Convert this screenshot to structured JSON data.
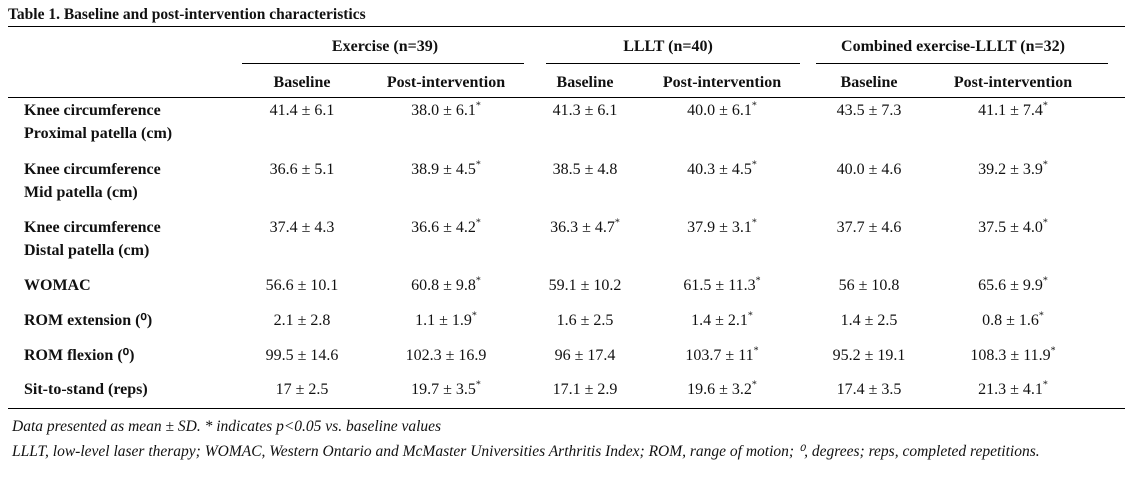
{
  "title": "Table 1. Baseline and post-intervention characteristics",
  "groups": [
    "Exercise (n=39)",
    "LLLT (n=40)",
    "Combined exercise-LLLT (n=32)"
  ],
  "subheaders": [
    "Baseline",
    "Post-intervention",
    "Baseline",
    "Post-intervention",
    "Baseline",
    "Post-intervention"
  ],
  "rows": [
    {
      "label": [
        "Knee circumference",
        "Proximal patella (cm)"
      ],
      "cells": [
        {
          "value": "41.4 ± 6.1"
        },
        {
          "value": "38.0 ± 6.1",
          "sup": "*"
        },
        {
          "value": "41.3 ± 6.1"
        },
        {
          "value": "40.0 ± 6.1",
          "sup": "*"
        },
        {
          "value": "43.5 ± 7.3"
        },
        {
          "value": "41.1 ± 7.4",
          "sup": "*"
        }
      ]
    },
    {
      "label": [
        "Knee circumference",
        "Mid patella (cm)"
      ],
      "cells": [
        {
          "value": "36.6 ± 5.1"
        },
        {
          "value": "38.9 ± 4.5",
          "sup": "*"
        },
        {
          "value": "38.5 ± 4.8"
        },
        {
          "value": "40.3 ± 4.5",
          "sup": "*"
        },
        {
          "value": "40.0 ± 4.6"
        },
        {
          "value": "39.2 ± 3.9",
          "sup": "*"
        }
      ]
    },
    {
      "label": [
        "Knee circumference",
        "Distal patella (cm)"
      ],
      "cells": [
        {
          "value": "37.4 ± 4.3"
        },
        {
          "value": "36.6 ± 4.2",
          "sup": "*"
        },
        {
          "value": "36.3 ± 4.7",
          "sup": "*"
        },
        {
          "value": "37.9 ± 3.1",
          "sup": "*"
        },
        {
          "value": "37.7 ± 4.6"
        },
        {
          "value": "37.5 ± 4.0",
          "sup": "*"
        }
      ]
    },
    {
      "label": [
        "WOMAC"
      ],
      "cells": [
        {
          "value": "56.6 ± 10.1"
        },
        {
          "value": "60.8 ± 9.8",
          "sup": "*"
        },
        {
          "value": "59.1 ± 10.2"
        },
        {
          "value": "61.5 ± 11.3",
          "sup": "*"
        },
        {
          "value": "56 ± 10.8"
        },
        {
          "value": "65.6 ± 9.9",
          "sup": "*"
        }
      ]
    },
    {
      "label": [
        "ROM extension (⁰)"
      ],
      "cells": [
        {
          "value": "2.1 ± 2.8"
        },
        {
          "value": "1.1 ± 1.9",
          "sup": "*"
        },
        {
          "value": "1.6 ± 2.5"
        },
        {
          "value": "1.4 ± 2.1",
          "sup": "*"
        },
        {
          "value": "1.4 ± 2.5"
        },
        {
          "value": "0.8 ± 1.6",
          "sup": "*"
        }
      ]
    },
    {
      "label": [
        "ROM flexion (⁰)"
      ],
      "cells": [
        {
          "value": "99.5 ± 14.6"
        },
        {
          "value": "102.3 ± 16.9"
        },
        {
          "value": "96 ± 17.4"
        },
        {
          "value": "103.7 ± 11",
          "sup": "*"
        },
        {
          "value": "95.2 ± 19.1"
        },
        {
          "value": "108.3 ± 11.9",
          "sup": "*"
        }
      ]
    },
    {
      "label": [
        "Sit-to-stand (reps)"
      ],
      "cells": [
        {
          "value": "17 ± 2.5"
        },
        {
          "value": "19.7 ± 3.5",
          "sup": "*"
        },
        {
          "value": "17.1 ± 2.9"
        },
        {
          "value": "19.6 ± 3.2",
          "sup": "*"
        },
        {
          "value": "17.4 ± 3.5"
        },
        {
          "value": "21.3 ± 4.1",
          "sup": "*"
        }
      ]
    }
  ],
  "footnotes": [
    "Data presented as mean ± SD. * indicates p<0.05 vs. baseline values",
    "LLLT, low-level laser therapy; WOMAC, Western Ontario and McMaster Universities Arthritis Index; ROM, range of motion; ⁰, degrees; reps, completed repetitions."
  ]
}
